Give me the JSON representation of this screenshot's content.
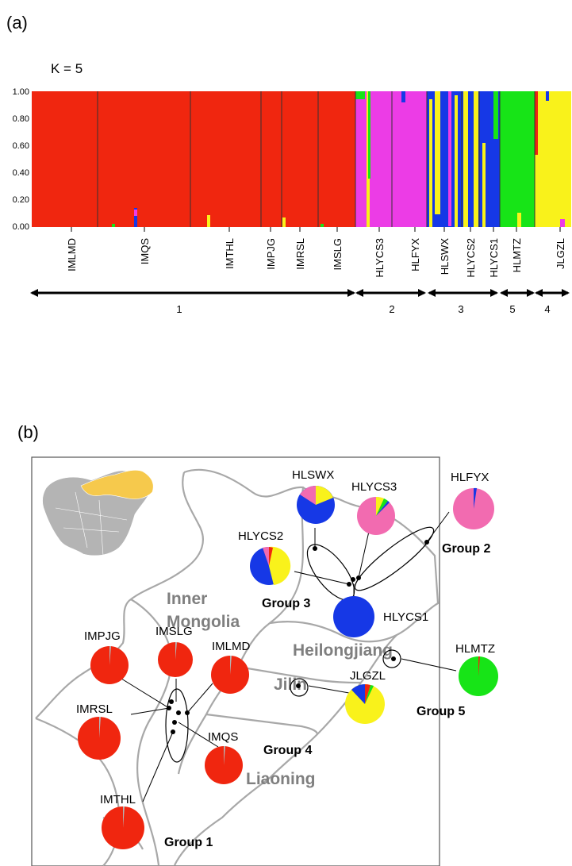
{
  "panel_a": {
    "label": "(a)",
    "k_label": "K = 5",
    "y_ticks": [
      "1.00",
      "0.80",
      "0.60",
      "0.40",
      "0.20",
      "0.00"
    ],
    "populations": [
      "IMLMD",
      "IMQS",
      "IMTHL",
      "IMPJG",
      "IMRSL",
      "IMSLG",
      "HLYCS3",
      "HLFYX",
      "HLSWX",
      "HLYCS2",
      "HLYCS1",
      "HLMTZ",
      "JLGZL"
    ],
    "groups": [
      {
        "label": "1"
      },
      {
        "label": "2"
      },
      {
        "label": "3"
      },
      {
        "label": "5"
      },
      {
        "label": "4"
      }
    ]
  },
  "panel_b": {
    "label": "(b)",
    "regions": [
      "Inner",
      "Mongolia",
      "Heilongjiang",
      "Jilin",
      "Liaoning"
    ],
    "group_labels": [
      "Group 1",
      "Group 2",
      "Group 3",
      "Group 4",
      "Group 5"
    ],
    "pie_labels": [
      "HLSWX",
      "HLYCS3",
      "HLFYX",
      "HLYCS2",
      "HLYCS1",
      "HLMTZ",
      "IMPJG",
      "IMSLG",
      "IMLMD",
      "IMRSL",
      "IMQS",
      "JLGZL",
      "IMTHL"
    ]
  },
  "colors": {
    "red": "#f0260f",
    "magenta": "#ec3ce6",
    "blue": "#1638e6",
    "green": "#17e417",
    "yellow": "#f9f21b",
    "pink": "#f26bb0",
    "gray": "#b4b4b4",
    "china_highlight": "#f6c94c",
    "label_gray": "#7f7f7f"
  }
}
